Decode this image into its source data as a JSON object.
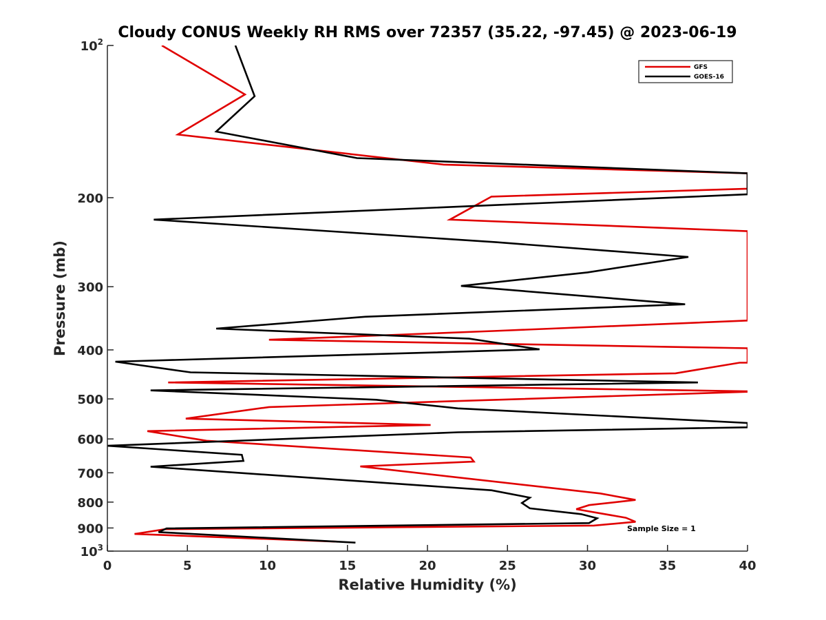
{
  "chart_data": {
    "type": "line",
    "title": "Cloudy CONUS Weekly RH RMS over 72357 (35.22, -97.45) @ 2023-06-19",
    "xlabel": "Relative Humidity (%)",
    "ylabel": "Pressure (mb)",
    "xlim": [
      0,
      40
    ],
    "ylim": [
      100,
      1000
    ],
    "y_scale": "log",
    "y_reversed": true,
    "x_ticks": [
      "0",
      "5",
      "10",
      "15",
      "20",
      "25",
      "30",
      "35",
      "40"
    ],
    "y_ticks": [
      {
        "value": 100,
        "base": "10",
        "exp": "2"
      },
      {
        "value": 200,
        "label": "200"
      },
      {
        "value": 300,
        "label": "300"
      },
      {
        "value": 400,
        "label": "400"
      },
      {
        "value": 500,
        "label": "500"
      },
      {
        "value": 600,
        "label": "600"
      },
      {
        "value": 700,
        "label": "700"
      },
      {
        "value": 800,
        "label": "800"
      },
      {
        "value": 900,
        "label": "900"
      },
      {
        "value": 1000,
        "base": "10",
        "exp": "3"
      }
    ],
    "grid": false,
    "legend_position": "top-right",
    "annotation": "Sample Size = 1",
    "series": [
      {
        "name": "GFS",
        "color": "#e00000",
        "points": [
          [
            3.4,
            100
          ],
          [
            8.6,
            125
          ],
          [
            4.4,
            150
          ],
          [
            21,
            172
          ],
          [
            40,
            179
          ],
          [
            40,
            192
          ],
          [
            24,
            199
          ],
          [
            21.4,
            221
          ],
          [
            40,
            233
          ],
          [
            40,
            350
          ],
          [
            24.1,
            367
          ],
          [
            10.1,
            382
          ],
          [
            40,
            397
          ],
          [
            40,
            424
          ],
          [
            39.5,
            424
          ],
          [
            35.5,
            445
          ],
          [
            3.8,
            464
          ],
          [
            40,
            483
          ],
          [
            40,
            484
          ],
          [
            10.1,
            519
          ],
          [
            4.9,
            547
          ],
          [
            20.2,
            563
          ],
          [
            2.5,
            579
          ],
          [
            6.2,
            605
          ],
          [
            22.7,
            653
          ],
          [
            22.9,
            665
          ],
          [
            15.8,
            680
          ],
          [
            30.8,
            769
          ],
          [
            33,
            792
          ],
          [
            30.1,
            811
          ],
          [
            29.3,
            826
          ],
          [
            32.4,
            859
          ],
          [
            33,
            875
          ],
          [
            30.4,
            890
          ],
          [
            3.6,
            905
          ],
          [
            1.7,
            925
          ],
          [
            14.4,
            958
          ]
        ]
      },
      {
        "name": "GOES-16",
        "color": "#000000",
        "points": [
          [
            8,
            100
          ],
          [
            9.2,
            126
          ],
          [
            6.8,
            148
          ],
          [
            15.6,
            167
          ],
          [
            40,
            179
          ],
          [
            40,
            197
          ],
          [
            2.9,
            221
          ],
          [
            24.3,
            245
          ],
          [
            36.3,
            262
          ],
          [
            30,
            281
          ],
          [
            22.1,
            299
          ],
          [
            36.1,
            325
          ],
          [
            16.1,
            344
          ],
          [
            6.8,
            363
          ],
          [
            22.6,
            380
          ],
          [
            27,
            399
          ],
          [
            0.5,
            422
          ],
          [
            5.2,
            443
          ],
          [
            36.9,
            464
          ],
          [
            2.7,
            481
          ],
          [
            16.8,
            502
          ],
          [
            21.9,
            522
          ],
          [
            40,
            558
          ],
          [
            40,
            569
          ],
          [
            21.9,
            582
          ],
          [
            0,
            619
          ],
          [
            8.4,
            645
          ],
          [
            8.5,
            663
          ],
          [
            2.7,
            681
          ],
          [
            24,
            758
          ],
          [
            26.4,
            784
          ],
          [
            25.9,
            803
          ],
          [
            26.4,
            823
          ],
          [
            29.6,
            845
          ],
          [
            30.6,
            861
          ],
          [
            30.1,
            880
          ],
          [
            3.7,
            902
          ],
          [
            3.2,
            917
          ],
          [
            15.5,
            962
          ]
        ]
      }
    ]
  }
}
